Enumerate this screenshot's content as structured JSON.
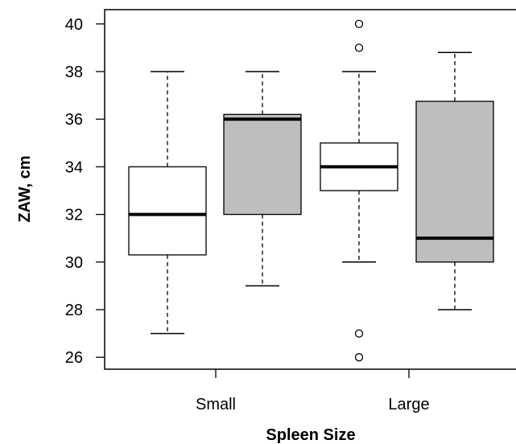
{
  "chart_data": {
    "type": "boxplot",
    "title": "",
    "xlabel": "Spleen Size",
    "ylabel": "ZAW, cm",
    "ylim": [
      25.5,
      40.6
    ],
    "yticks": [
      26,
      28,
      30,
      32,
      34,
      36,
      38,
      40
    ],
    "categories": [
      "Small",
      "Large"
    ],
    "boxes": [
      {
        "group": "Small",
        "fill": "#ffffff",
        "whisker_low": 27,
        "q1": 30.3,
        "median": 32,
        "q3": 34,
        "whisker_high": 38,
        "outliers": []
      },
      {
        "group": "Small",
        "fill": "#bebebe",
        "whisker_low": 29,
        "q1": 32,
        "median": 36,
        "q3": 36.2,
        "whisker_high": 38,
        "outliers": []
      },
      {
        "group": "Large",
        "fill": "#ffffff",
        "whisker_low": 30,
        "q1": 33,
        "median": 34,
        "q3": 35,
        "whisker_high": 38,
        "outliers": [
          40,
          39,
          27,
          26
        ]
      },
      {
        "group": "Large",
        "fill": "#bebebe",
        "whisker_low": 28,
        "q1": 30,
        "median": 31,
        "q3": 36.75,
        "whisker_high": 38.8,
        "outliers": []
      }
    ],
    "grid": false,
    "legend": false
  }
}
